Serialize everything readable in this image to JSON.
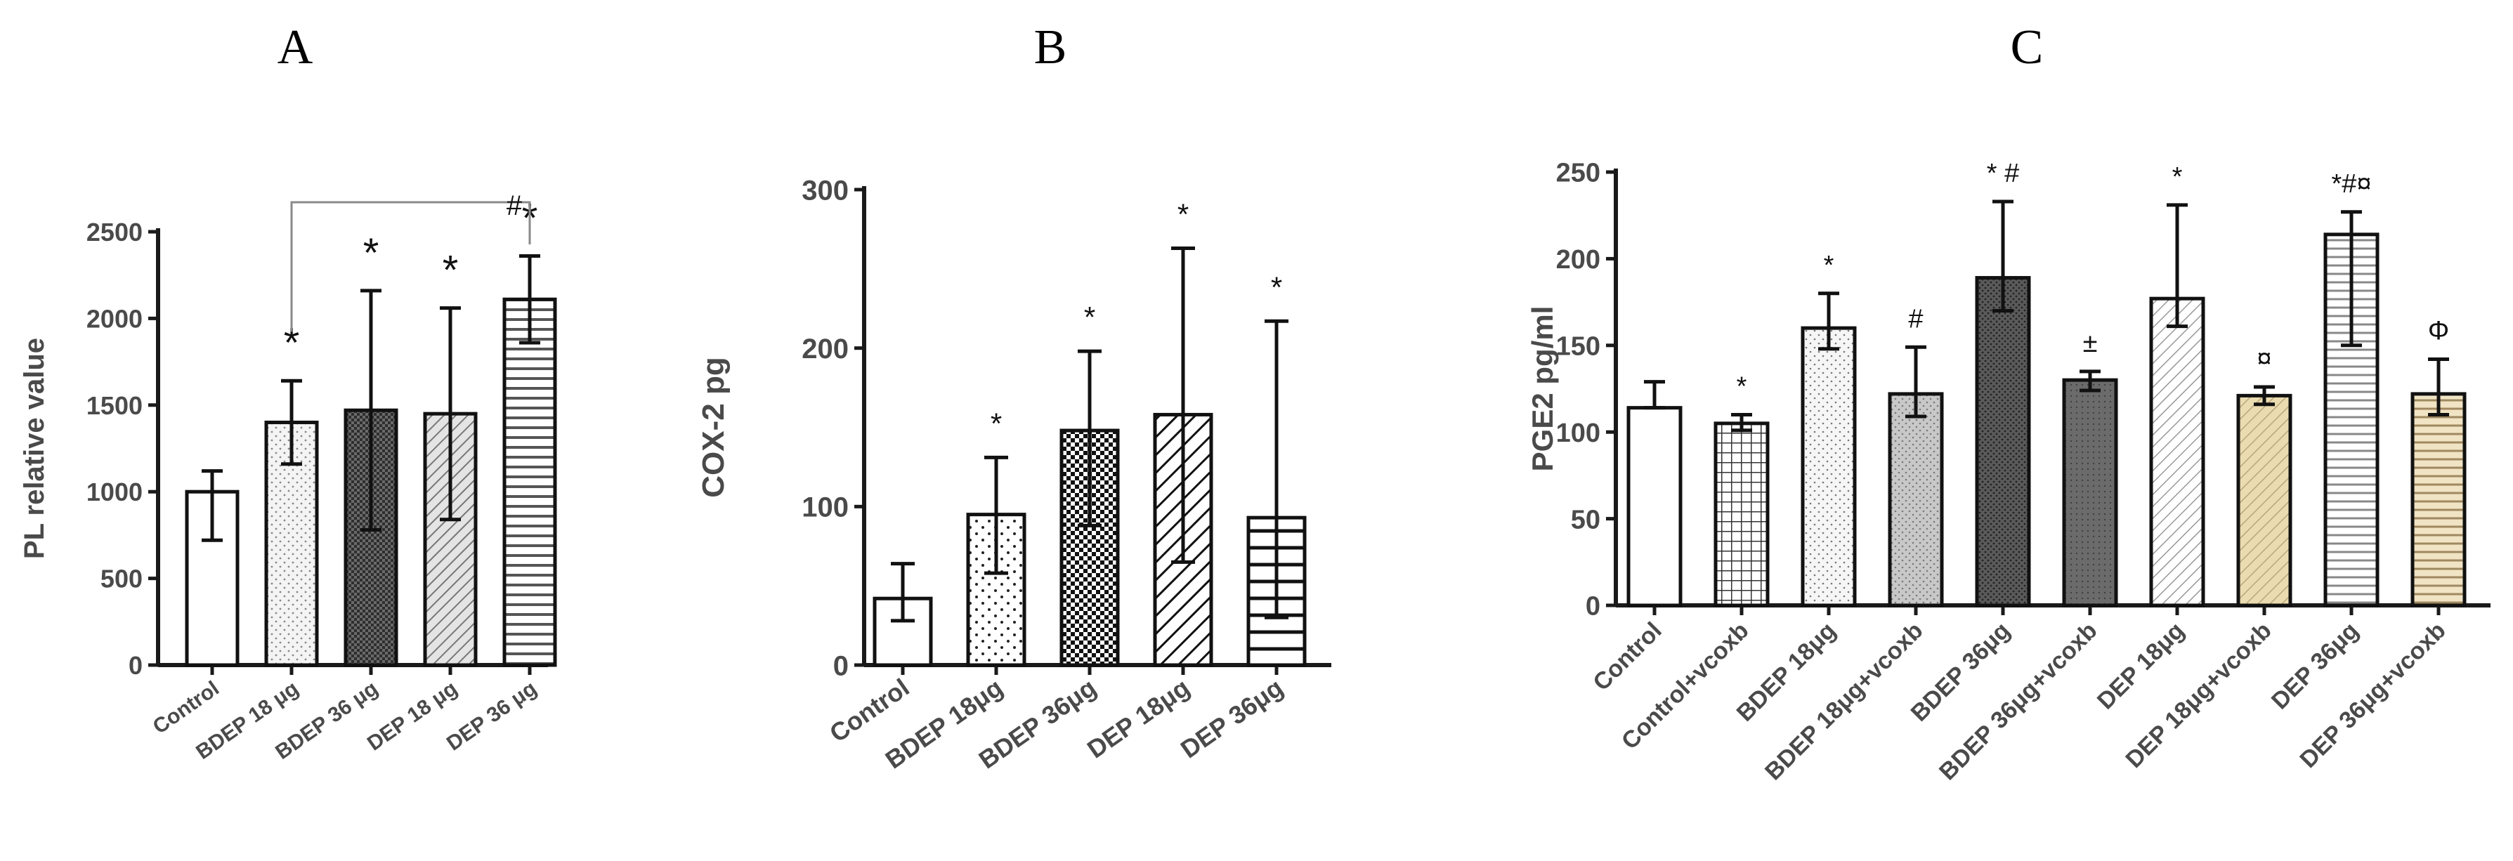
{
  "chart_data": [
    {
      "panel": "A",
      "type": "bar",
      "title": "A",
      "xlabel": "",
      "ylabel": "PL relative value",
      "ylim": [
        0,
        2500
      ],
      "yticks": [
        0,
        500,
        1000,
        1500,
        2000,
        2500
      ],
      "categories": [
        "Control",
        "BDEP 18 μg",
        "BDEP 36 μg",
        "DEP 18 μg",
        "DEP 36 μg"
      ],
      "values": [
        1000,
        1400,
        1470,
        1450,
        2110
      ],
      "err_low": [
        720,
        1160,
        780,
        840,
        1860
      ],
      "err_high": [
        1120,
        1640,
        2160,
        2060,
        2360
      ],
      "patterns": [
        "white",
        "sparse-dots",
        "dense-grid",
        "diagonal",
        "horizontal"
      ],
      "annotations": [
        "",
        "*",
        "*",
        "*",
        "*"
      ],
      "bracket": {
        "from": "BDEP 18 μg",
        "to": "DEP 36 μg",
        "label": "#"
      }
    },
    {
      "panel": "B",
      "type": "bar",
      "title": "B",
      "xlabel": "",
      "ylabel": "COX-2 pg",
      "ylim": [
        0,
        300
      ],
      "yticks": [
        0,
        100,
        200,
        300
      ],
      "categories": [
        "Control",
        "BDEP 18μg",
        "BDEP 36μg",
        "DEP 18μg",
        "DEP 36μg"
      ],
      "values": [
        42,
        95,
        148,
        158,
        93
      ],
      "err_low": [
        28,
        58,
        88,
        65,
        30
      ],
      "err_high": [
        64,
        131,
        198,
        263,
        217
      ],
      "patterns": [
        "white",
        "dots",
        "checker",
        "diagonal-bold",
        "horizontal-bold"
      ],
      "annotations": [
        "",
        "*",
        "*",
        "*",
        "*"
      ]
    },
    {
      "panel": "C",
      "type": "bar",
      "title": "C",
      "xlabel": "",
      "ylabel": "PGE2 pg/ml",
      "ylim": [
        0,
        250
      ],
      "yticks": [
        0,
        50,
        100,
        150,
        200,
        250
      ],
      "categories": [
        "Control",
        "Control+vcoxb",
        "BDEP 18μg",
        "BDEP 18μg+vcoxb",
        "BDEP 36μg",
        "BDEP 36μg+vcoxb",
        "DEP 18μg",
        "DEP 18μg+vcoxb",
        "DEP 36μg",
        "DEP 36μg+vcoxb"
      ],
      "values": [
        114,
        105,
        160,
        122,
        189,
        130,
        177,
        121,
        214,
        122
      ],
      "err_low": [
        114,
        101,
        148,
        109,
        170,
        124,
        161,
        116,
        150,
        110
      ],
      "err_high": [
        129,
        110,
        180,
        149,
        233,
        135,
        231,
        126,
        227,
        142
      ],
      "patterns": [
        "white",
        "grid",
        "dots-light",
        "dots-gray",
        "dark-dots",
        "dark-gray",
        "diagonal-light",
        "tan-diagonal",
        "horizontal-light",
        "tan-horizontal"
      ],
      "annotations": [
        "",
        "*",
        "*",
        "#",
        "* #",
        "±",
        "*",
        "¤",
        "*#¤",
        "Φ"
      ]
    }
  ],
  "colors": {
    "axis": "#1a1a1a",
    "label": "#4a4a4a",
    "tan": "#e6d7a8",
    "gray": "#cfcfcf",
    "dark": "#555555"
  }
}
